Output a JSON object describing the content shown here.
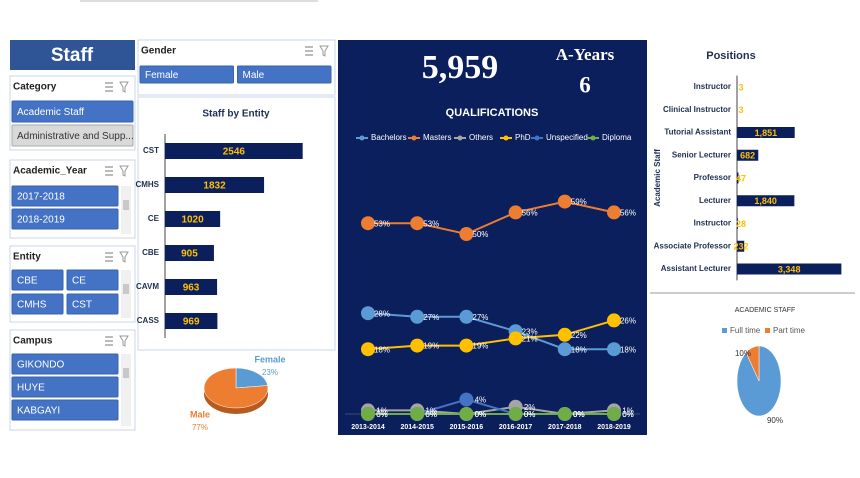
{
  "staff_title": "Staff",
  "slicers": [
    {
      "title": "Category",
      "items": [
        "Academic Staff",
        "Administrative and Supp..."
      ],
      "selected": [
        true,
        false
      ]
    },
    {
      "title": "Academic_Year",
      "items": [
        "2017-2018",
        "2018-2019"
      ],
      "selected": [
        true,
        true
      ]
    },
    {
      "title": "Entity",
      "items": [
        "CBE",
        "CE",
        "CMHS",
        "CST"
      ],
      "selected": [
        true,
        true,
        true,
        true
      ]
    },
    {
      "title": "Campus",
      "items": [
        "GIKONDO",
        "HUYE",
        "KABGAYI"
      ],
      "selected": [
        true,
        true,
        true
      ]
    },
    {
      "title": "Gender",
      "items": [
        "Female",
        "Male"
      ],
      "selected": [
        true,
        true
      ]
    }
  ],
  "kpi": {
    "total": {
      "value": 5959,
      "label": "5,959"
    },
    "years_label": "A-Years",
    "years": 6
  },
  "chart_data": [
    {
      "type": "hbar",
      "title": "Staff by Entity",
      "categories": [
        "CST",
        "CMHS",
        "CE",
        "CBE",
        "CAVM",
        "CASS"
      ],
      "values": [
        2546,
        1832,
        1020,
        905,
        963,
        969
      ],
      "color": "#0b1f5c",
      "label_color": "#ffc000",
      "xlim": [
        0,
        2700
      ]
    },
    {
      "type": "pie",
      "categories": [
        "Female",
        "Male"
      ],
      "values": [
        23,
        77
      ],
      "value_labels": [
        "23%",
        "77%"
      ],
      "colors": [
        "#5b9bd5",
        "#ed7d31"
      ]
    },
    {
      "type": "line",
      "title": "QUALIFICATIONS",
      "categories": [
        "2013-2014",
        "2014-2015",
        "2015-2016",
        "2016-2017",
        "2017-2018",
        "2018-2019"
      ],
      "ylim": [
        0,
        60
      ],
      "series": [
        {
          "name": "Bachelors",
          "color": "#5b9bd5",
          "values": [
            28,
            27,
            27,
            23,
            18,
            18
          ],
          "value_labels": [
            "28%",
            "27%",
            "27%",
            "23%",
            "18%",
            "18%"
          ]
        },
        {
          "name": "Masters",
          "color": "#ed7d31",
          "values": [
            53,
            53,
            50,
            56,
            59,
            56
          ],
          "value_labels": [
            "53%",
            "53%",
            "50%",
            "56%",
            "59%",
            "56%"
          ]
        },
        {
          "name": "Others",
          "color": "#a5a5a5",
          "values": [
            1,
            1,
            0,
            2,
            0,
            1
          ],
          "value_labels": [
            "1%",
            "1%",
            "0%",
            "2%",
            "0%",
            "1%"
          ]
        },
        {
          "name": "PhD",
          "color": "#ffc000",
          "values": [
            18,
            19,
            19,
            21,
            22,
            26
          ],
          "value_labels": [
            "18%",
            "19%",
            "19%",
            "21%",
            "22%",
            "26%"
          ]
        },
        {
          "name": "Unspecified",
          "color": "#4472c4",
          "values": [
            0,
            0,
            4,
            0,
            0,
            0
          ],
          "value_labels": [
            "0%",
            "0%",
            "4%",
            "0%",
            "0%",
            "0%"
          ]
        },
        {
          "name": "Diploma",
          "color": "#70ad47",
          "values": [
            0,
            0,
            0,
            0,
            0,
            0
          ],
          "value_labels": [
            "0%",
            "0%",
            "0%",
            "0%",
            "0%",
            "0%"
          ]
        }
      ]
    },
    {
      "type": "hbar",
      "title": "Positions",
      "ylabel": "Academic Staff",
      "categories": [
        "Instructor",
        "Clinical Instructor",
        "Tutorial Assistant",
        "Senior Lecturer",
        "Professor",
        "Lecturer",
        "Instructor",
        "Associate Professor",
        "Assistant Lecturer"
      ],
      "values": [
        3,
        3,
        1851,
        682,
        47,
        1840,
        28,
        232,
        3348
      ],
      "value_labels": [
        "3",
        "3",
        "1,851",
        "682",
        "47",
        "1,840",
        "28",
        "232",
        "3,348"
      ],
      "color": "#0b1f5c",
      "label_color": "#ffc000",
      "xlim": [
        0,
        3400
      ]
    },
    {
      "type": "pie",
      "title": "ACADEMIC STAFF",
      "categories": [
        "Full time",
        "Part time"
      ],
      "values": [
        90,
        10
      ],
      "value_labels": [
        "90%",
        "10%"
      ],
      "colors": [
        "#5b9bd5",
        "#ed7d31"
      ],
      "legend": "top"
    }
  ]
}
